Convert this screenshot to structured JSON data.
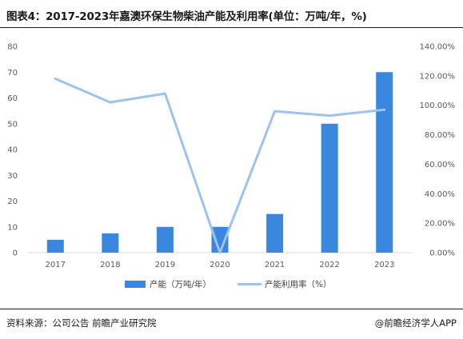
{
  "title": "图表4：2017-2023年嘉澳环保生物柴油产能及利用率(单位：万吨/年，%)",
  "source": "资料来源：公司公告 前瞻产业研究院",
  "brand": "@前瞻经济学人APP",
  "colors": {
    "bar": "#3a87e0",
    "line": "#9dc3ec",
    "axis": "#d9d9d9"
  },
  "chart_data": {
    "type": "bar",
    "categories": [
      "2017",
      "2018",
      "2019",
      "2020",
      "2021",
      "2022",
      "2023"
    ],
    "series": [
      {
        "name": "产能（万吨/年）",
        "type": "bar",
        "axis": "left",
        "values": [
          5,
          7.5,
          10,
          10,
          15,
          50,
          70
        ]
      },
      {
        "name": "产能利用率（%）",
        "type": "line",
        "axis": "right",
        "values": [
          118,
          102,
          108,
          0,
          96,
          93,
          97
        ]
      }
    ],
    "y_left": {
      "min": 0,
      "max": 80,
      "step": 10,
      "ticks": [
        "0",
        "10",
        "20",
        "30",
        "40",
        "50",
        "60",
        "70",
        "80"
      ]
    },
    "y_right": {
      "min": 0,
      "max": 140,
      "step": 20,
      "ticks": [
        "0.00%",
        "20.00%",
        "40.00%",
        "60.00%",
        "80.00%",
        "100.00%",
        "120.00%",
        "140.00%"
      ]
    },
    "legend_position": "bottom",
    "grid": false
  }
}
